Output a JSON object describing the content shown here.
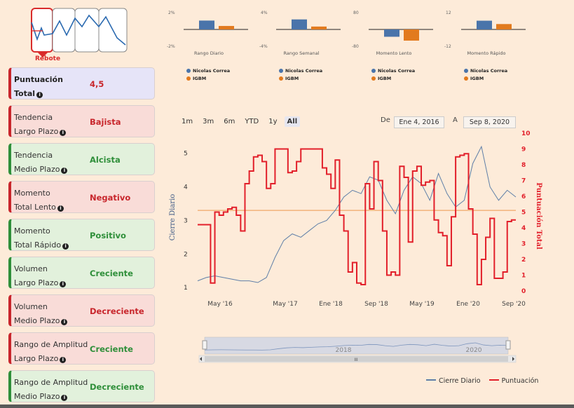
{
  "logo": {
    "label": "Rebote",
    "accent": "#d92b2b"
  },
  "mini_charts": [
    {
      "title": "Rango Diario",
      "ymax": "2%",
      "ymin": "-2%",
      "values": [
        1.15,
        0.45
      ]
    },
    {
      "title": "Rango Semanal",
      "ymax": "4%",
      "ymin": "-4%",
      "values": [
        2.6,
        0.75
      ]
    },
    {
      "title": "Momento Lento",
      "ymax": "80",
      "ymin": "-80",
      "values": [
        -38,
        -58
      ]
    },
    {
      "title": "Momento Rápido",
      "ymax": "12",
      "ymin": "-12",
      "values": [
        6.8,
        4.2
      ]
    }
  ],
  "mini_legend": {
    "a": "Nicolas Correa",
    "b": "IGBM"
  },
  "colors": {
    "blue": "#4a74aa",
    "orange": "#e27a1e",
    "red": "#e21f2a",
    "series_blue": "#5f7fa8"
  },
  "cards": [
    {
      "line1": "Puntuación",
      "line2": "Total",
      "value": "4,5",
      "style": "purple"
    },
    {
      "line1": "Tendencia",
      "line2": "Largo Plazo",
      "value": "Bajista",
      "style": "red"
    },
    {
      "line1": "Tendencia",
      "line2": "Medio Plazo",
      "value": "Alcista",
      "style": "green"
    },
    {
      "line1": "Momento",
      "line2": "Total Lento",
      "value": "Negativo",
      "style": "red"
    },
    {
      "line1": "Momento",
      "line2": "Total Rápido",
      "value": "Positivo",
      "style": "green"
    },
    {
      "line1": "Volumen",
      "line2": "Largo Plazo",
      "value": "Creciente",
      "style": "green"
    },
    {
      "line1": "Volumen",
      "line2": "Medio Plazo",
      "value": "Decreciente",
      "style": "red"
    },
    {
      "line1": "Rango de Amplitud",
      "line2": "Largo Plazo",
      "value": "Creciente",
      "style": "red"
    },
    {
      "line1": "Rango de Amplitud",
      "line2": "Medio Plazo",
      "value": "Decreciente",
      "style": "green"
    }
  ],
  "range_buttons": [
    "1m",
    "3m",
    "6m",
    "YTD",
    "1y",
    "All"
  ],
  "range_selected": "All",
  "date_range": {
    "from_label": "De",
    "from": "Ene 4, 2016",
    "to_label": "A",
    "to": "Sep 8, 2020"
  },
  "navigator": {
    "labels": [
      "2018",
      "2020"
    ],
    "scroll": "III"
  },
  "legend": {
    "series1": "Cierre Diario",
    "series2": "Puntuación"
  },
  "chart_data": {
    "type": "line",
    "title": "",
    "x_labels": [
      "May '16",
      "May '17",
      "Ene '18",
      "Sep '18",
      "May '19",
      "Ene '20",
      "Sep '20"
    ],
    "y_left": {
      "label": "Cierre Diario",
      "ticks": [
        1,
        2,
        3,
        4,
        5
      ],
      "range": [
        0.9,
        5.6
      ]
    },
    "y_right": {
      "label": "Puntuación Total",
      "ticks": [
        0,
        1,
        2,
        3,
        4,
        5,
        6,
        7,
        8,
        9,
        10
      ],
      "range": [
        0,
        10
      ]
    },
    "reference_line": 3.3,
    "series": [
      {
        "name": "Cierre Diario",
        "axis": "left",
        "values": [
          1.2,
          1.3,
          1.35,
          1.3,
          1.25,
          1.2,
          1.2,
          1.15,
          1.3,
          1.9,
          2.4,
          2.6,
          2.5,
          2.7,
          2.9,
          3.0,
          3.3,
          3.7,
          3.9,
          3.8,
          4.3,
          4.2,
          3.6,
          3.2,
          3.9,
          4.3,
          4.1,
          3.6,
          4.4,
          3.8,
          3.4,
          3.6,
          4.7,
          5.2,
          4.0,
          3.6,
          3.9,
          3.7
        ]
      },
      {
        "name": "Puntuación",
        "axis": "right",
        "values": [
          4.2,
          4.2,
          4.2,
          0.5,
          5,
          4.8,
          5,
          5.2,
          5.3,
          4.8,
          3.8,
          6.8,
          7.6,
          8.5,
          8.6,
          8.2,
          6.5,
          6.8,
          9.0,
          9.0,
          9.0,
          7.5,
          7.6,
          8.2,
          9.0,
          9.0,
          9.0,
          9.0,
          9.0,
          7.8,
          7.4,
          6.5,
          8.3,
          4.8,
          3.8,
          1.2,
          1.8,
          0.5,
          0.4,
          6.8,
          5.2,
          8.2,
          7.0,
          3.8,
          1.0,
          1.2,
          1.0,
          7.9,
          7.2,
          3.1,
          7.6,
          7.9,
          6.7,
          6.9,
          7.0,
          4.5,
          3.7,
          3.5,
          1.6,
          4.7,
          8.5,
          8.6,
          8.7,
          5.2,
          3.6,
          0.4,
          2.0,
          3.4,
          4.6,
          0.8,
          0.8,
          1.2,
          4.4,
          4.5
        ]
      }
    ]
  }
}
